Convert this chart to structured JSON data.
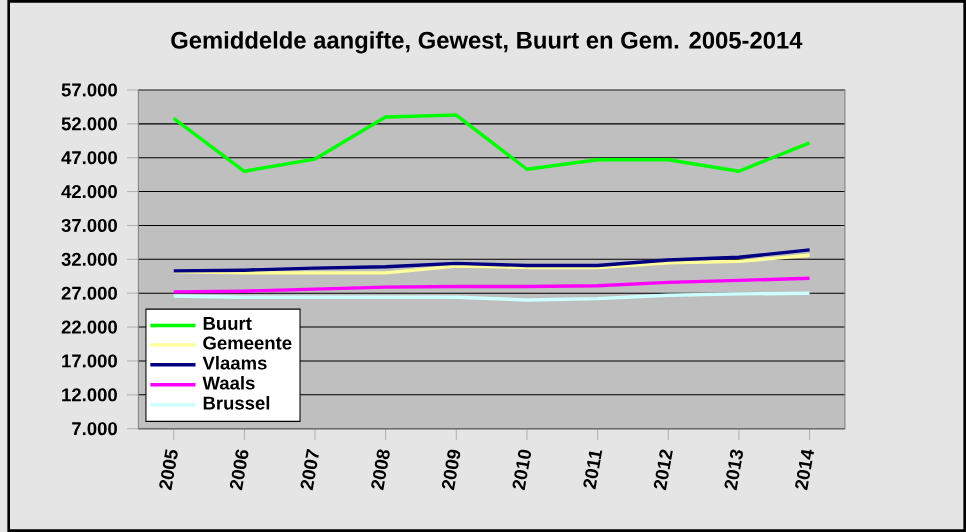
{
  "chart_data": {
    "type": "line",
    "title": "Gemiddelde aangifte, Gewest, Buurt en Gem. 2005-2014",
    "categories": [
      "2005",
      "2006",
      "2007",
      "2008",
      "2009",
      "2010",
      "2011",
      "2012",
      "2013",
      "2014"
    ],
    "series": [
      {
        "name": "Buurt",
        "color": "#00ff00",
        "values": [
          52.8,
          45.0,
          46.8,
          53.0,
          53.3,
          45.3,
          46.7,
          46.7,
          45.0,
          49.2
        ]
      },
      {
        "name": "Gemeente",
        "color": "#ffff99",
        "values": [
          30.2,
          30.0,
          30.0,
          30.0,
          31.0,
          30.8,
          30.8,
          31.5,
          31.7,
          32.6
        ]
      },
      {
        "name": "Vlaams",
        "color": "#000080",
        "values": [
          30.3,
          30.4,
          30.7,
          30.9,
          31.4,
          31.1,
          31.1,
          31.9,
          32.3,
          33.4
        ]
      },
      {
        "name": "Waals",
        "color": "#ff00ff",
        "values": [
          27.2,
          27.3,
          27.6,
          27.9,
          28.0,
          28.0,
          28.1,
          28.6,
          28.9,
          29.2
        ]
      },
      {
        "name": "Brussel",
        "color": "#ccffff",
        "values": [
          26.6,
          26.4,
          26.4,
          26.4,
          26.4,
          26.0,
          26.2,
          26.7,
          26.9,
          27.0
        ]
      }
    ],
    "ylim": [
      7,
      57
    ],
    "yticks": [
      {
        "value": 7,
        "label": "7.000"
      },
      {
        "value": 12,
        "label": "12.000"
      },
      {
        "value": 17,
        "label": "17.000"
      },
      {
        "value": 22,
        "label": "22.000"
      },
      {
        "value": 27,
        "label": "27.000"
      },
      {
        "value": 32,
        "label": "32.000"
      },
      {
        "value": 37,
        "label": "37.000"
      },
      {
        "value": 42,
        "label": "42.000"
      },
      {
        "value": 47,
        "label": "47.000"
      },
      {
        "value": 52,
        "label": "52.000"
      },
      {
        "value": 57,
        "label": "57.000"
      }
    ],
    "grid": "y",
    "legend": "bottom left",
    "marker": "none",
    "line_style": "solid"
  }
}
